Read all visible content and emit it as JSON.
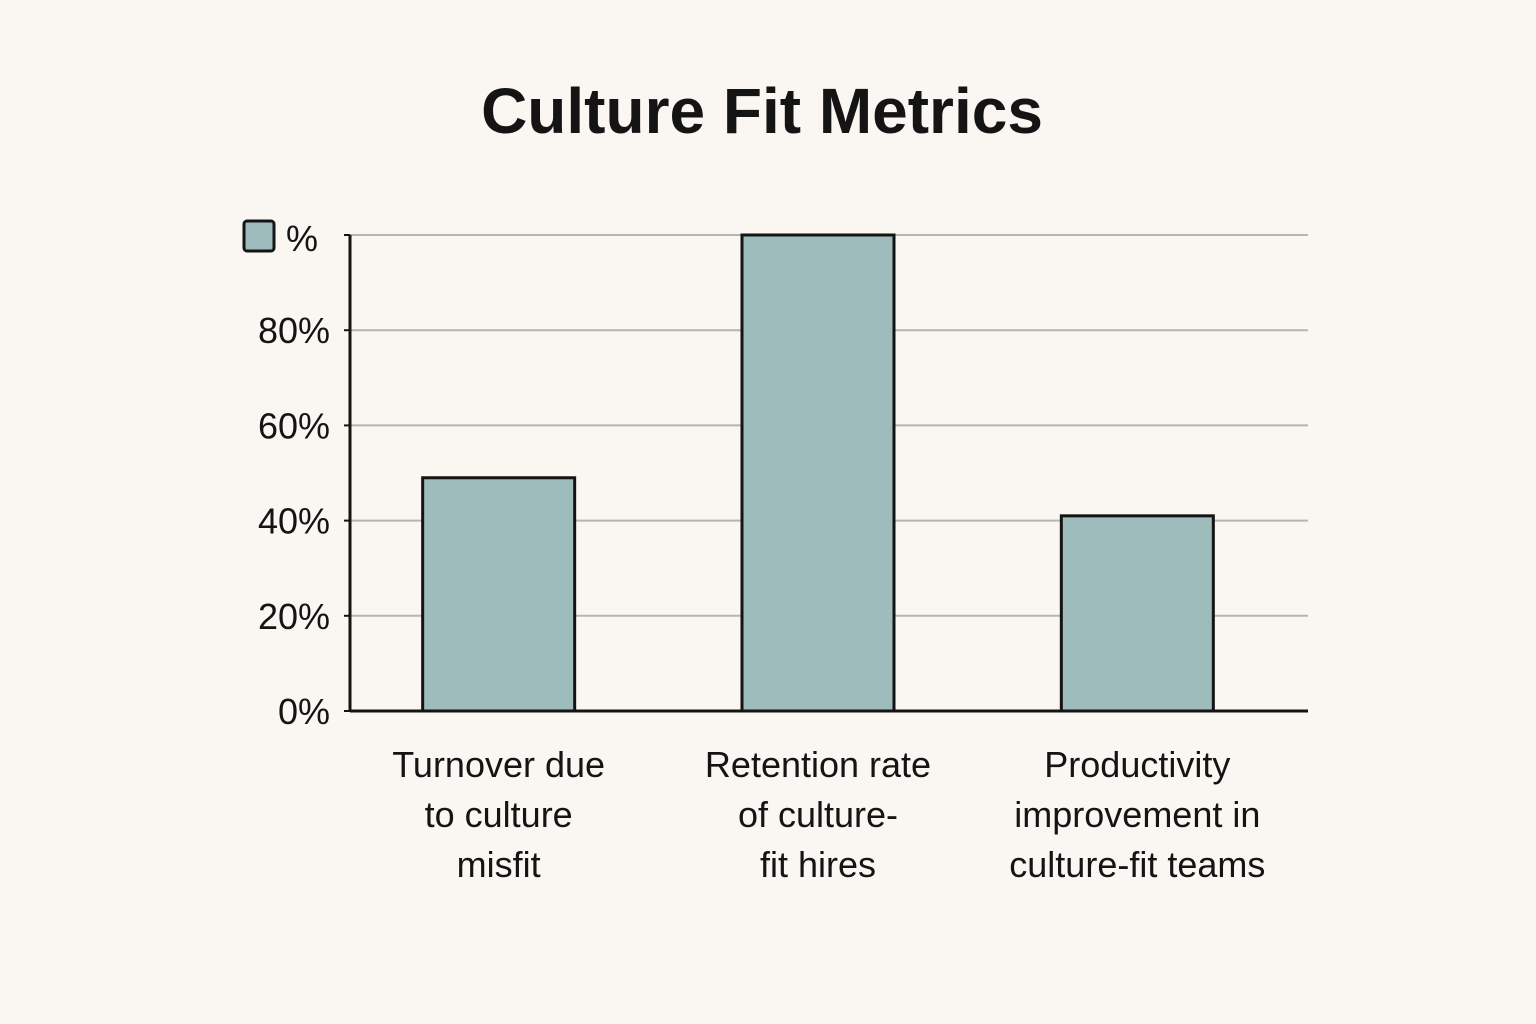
{
  "chart_data": {
    "type": "bar",
    "title": "Culture Fit Metrics",
    "xlabel": "",
    "ylabel": "",
    "categories": [
      [
        "Turnover due",
        "to culture",
        "misfit"
      ],
      [
        "Retention rate",
        "of culture-",
        "fit hires"
      ],
      [
        "Productivity",
        "improvement in",
        "culture-fit teams"
      ]
    ],
    "series": [
      {
        "name": "%",
        "values": [
          49,
          100,
          41
        ]
      }
    ],
    "ylim": [
      0,
      100
    ],
    "yticks": [
      0,
      20,
      40,
      60,
      80
    ],
    "ytick_labels": [
      "0%",
      "20%",
      "40%",
      "60%",
      "80%"
    ],
    "grid": true,
    "legend_position": "top-left",
    "colors": {
      "bar_fill": "#9dbcbb",
      "bar_stroke": "#141414",
      "grid": "#b5b5b5",
      "axis": "#141414",
      "background": "#faf6f1"
    }
  }
}
